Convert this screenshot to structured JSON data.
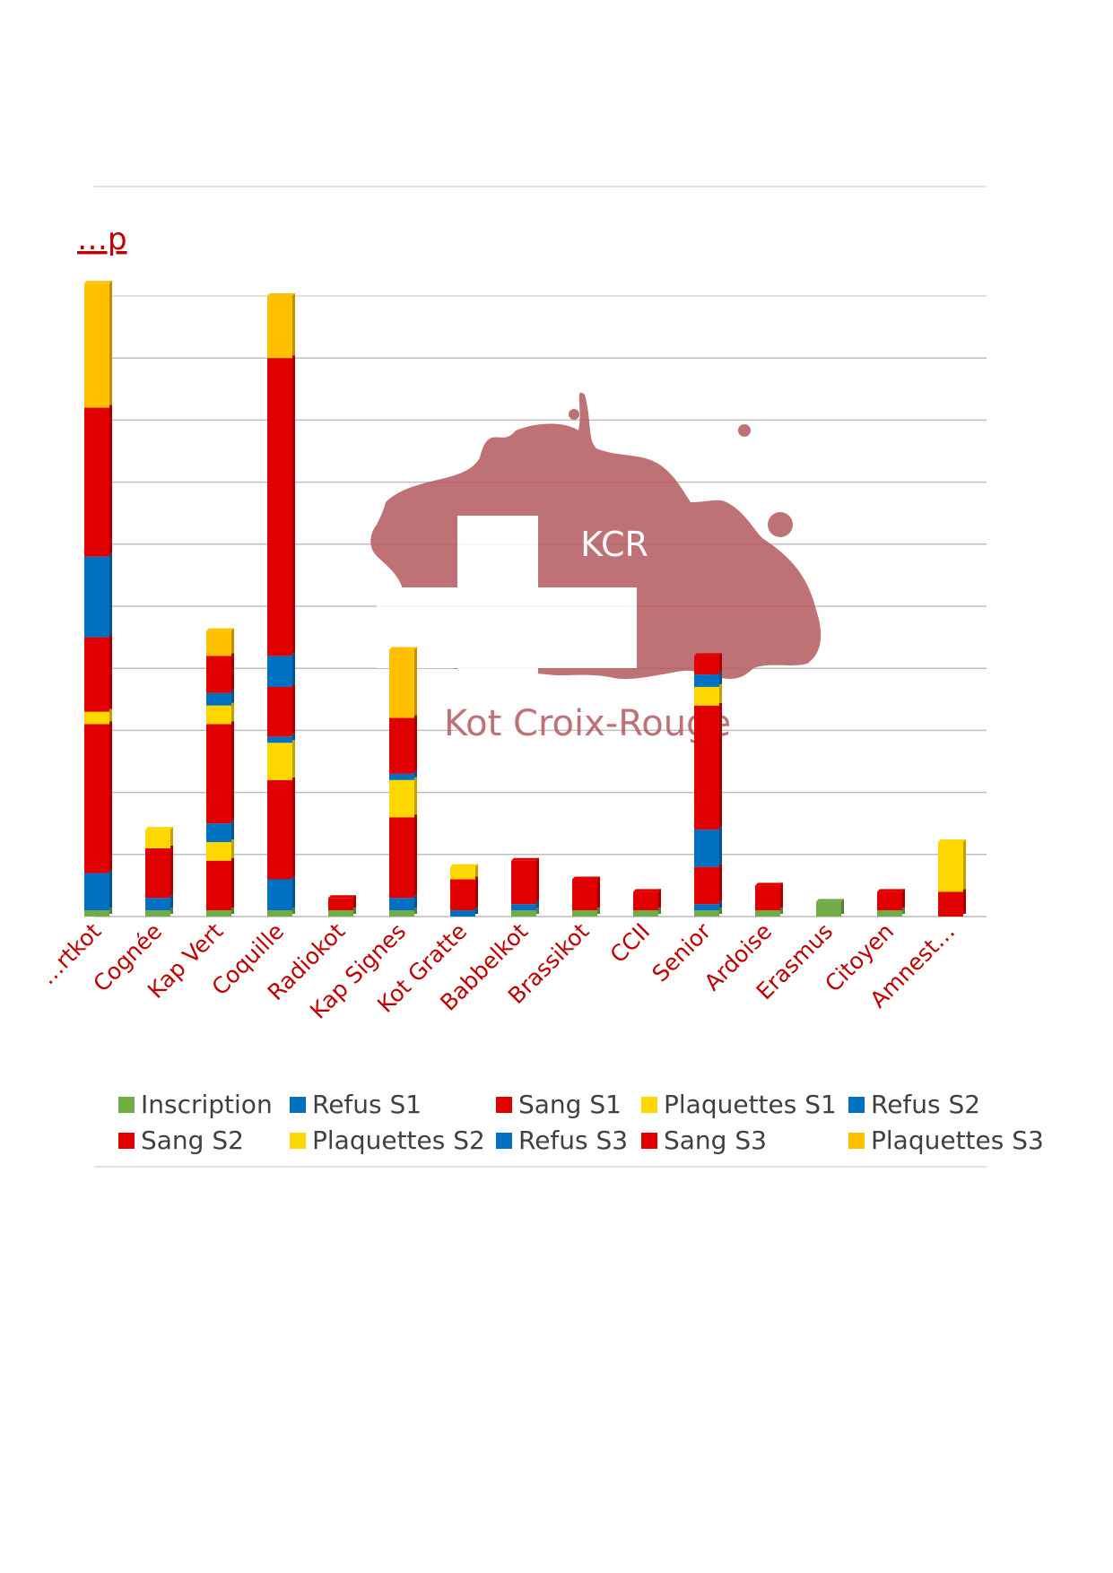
{
  "chart_data": {
    "type": "bar",
    "stacked": true,
    "title": "…p",
    "grid": true,
    "legend_position": "bottom",
    "watermark": {
      "heading": "KCR",
      "text": "Kot Croix-Rouge",
      "color": "#b55a5f"
    },
    "categories": [
      "…rtkot",
      "Cognée",
      "Kap Vert",
      "Coquille",
      "Radiokot",
      "Kap Signes",
      "Kot Gratte",
      "Babbelkot",
      "Brassikot",
      "CCII",
      "Senior",
      "Ardoise",
      "Erasmus",
      "Citoyen",
      "Amnest…"
    ],
    "ylim": [
      0,
      50
    ],
    "series": [
      {
        "name": "Inscription",
        "color": "#70ad47",
        "values": [
          0.5,
          0.5,
          0.5,
          0.5,
          0.5,
          0.5,
          0,
          0.5,
          0.5,
          0.5,
          0.5,
          0.5,
          1.2,
          0.5,
          0
        ]
      },
      {
        "name": "Refus S1",
        "color": "#0070c0",
        "values": [
          3,
          1,
          0,
          2.5,
          0,
          1,
          0.5,
          0.5,
          0,
          0,
          0.5,
          0,
          0,
          0,
          0
        ]
      },
      {
        "name": "Sang S1",
        "color": "#e00000",
        "values": [
          12,
          4,
          4,
          8,
          1,
          6.5,
          2.5,
          3.5,
          2.5,
          1.5,
          3,
          2,
          0,
          1.5,
          2
        ]
      },
      {
        "name": "Plaquettes S1",
        "color": "#ffd700",
        "values": [
          1,
          1.5,
          1.5,
          3,
          0,
          3,
          0,
          0,
          0,
          0,
          0,
          0,
          0,
          0,
          4
        ]
      },
      {
        "name": "Refus S2",
        "color": "#0070c0",
        "values": [
          0,
          0,
          1.5,
          0.5,
          0,
          0.5,
          0,
          0,
          0,
          0,
          3,
          0,
          0,
          0,
          0
        ]
      },
      {
        "name": "Sang S2",
        "color": "#e00000",
        "values": [
          6,
          0,
          8,
          4,
          0,
          0,
          0,
          0,
          0,
          0,
          10,
          0,
          0,
          0,
          0
        ]
      },
      {
        "name": "Plaquettes S2",
        "color": "#ffd700",
        "values": [
          0,
          0,
          1.5,
          0,
          0,
          0,
          1,
          0,
          0,
          0,
          1.5,
          0,
          0,
          0,
          0
        ]
      },
      {
        "name": "Refus S3",
        "color": "#0070c0",
        "values": [
          6.5,
          0,
          1,
          2.5,
          0,
          0,
          0,
          0,
          0,
          0,
          1,
          0,
          0,
          0,
          0
        ]
      },
      {
        "name": "Sang S3",
        "color": "#e00000",
        "values": [
          12,
          0,
          3,
          24,
          0,
          4.5,
          0,
          0,
          0,
          0,
          1.5,
          0,
          0,
          0,
          0
        ]
      },
      {
        "name": "Plaquettes S3",
        "color": "#ffc000",
        "values": [
          10,
          0,
          2,
          5,
          0,
          5.5,
          0,
          0,
          0,
          0,
          0,
          0,
          0,
          0,
          0
        ]
      }
    ]
  }
}
